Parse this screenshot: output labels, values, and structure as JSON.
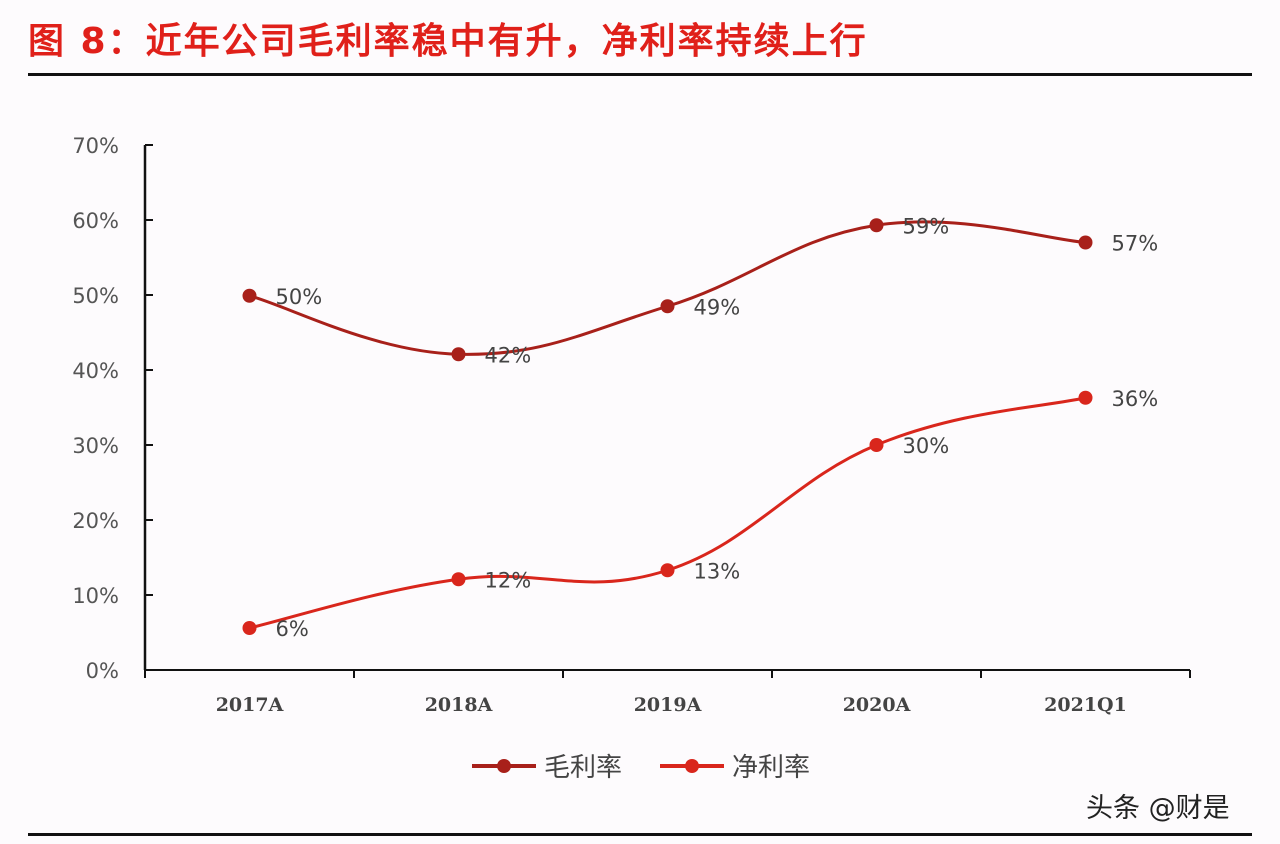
{
  "title": "图 8：近年公司毛利率稳中有升，净利率持续上行",
  "watermark": "头条 @财是",
  "chart_data": {
    "type": "line",
    "title": "",
    "xlabel": "",
    "ylabel": "",
    "categories": [
      "2017A",
      "2018A",
      "2019A",
      "2020A",
      "2021Q1"
    ],
    "ylim": [
      0,
      70
    ],
    "yticks": [
      "0%",
      "10%",
      "20%",
      "30%",
      "40%",
      "50%",
      "60%",
      "70%"
    ],
    "grid": false,
    "smooth": true,
    "legend_position": "bottom",
    "series": [
      {
        "name": "毛利率",
        "color": "#a8201a",
        "values": [
          49.9,
          42.1,
          48.5,
          59.3,
          57.0
        ],
        "labels": [
          "50%",
          "42%",
          "49%",
          "59%",
          "57%"
        ]
      },
      {
        "name": "净利率",
        "color": "#d9261c",
        "values": [
          5.6,
          12.1,
          13.3,
          30.0,
          36.3
        ],
        "labels": [
          "6%",
          "12%",
          "13%",
          "30%",
          "36%"
        ]
      }
    ]
  }
}
